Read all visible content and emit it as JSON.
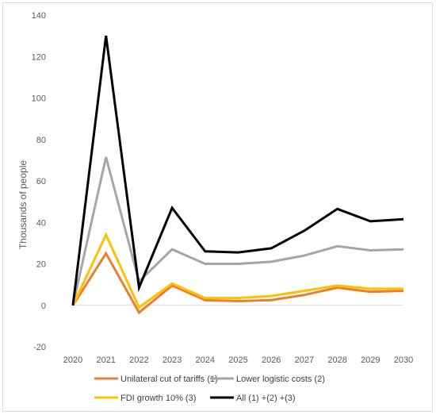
{
  "chart_data": {
    "type": "line",
    "title": "",
    "xlabel": "",
    "ylabel": "Thousands of people",
    "ylim": [
      -20,
      140
    ],
    "yticks": [
      -20,
      0,
      20,
      40,
      60,
      80,
      100,
      120,
      140
    ],
    "categories": [
      "2020",
      "2021",
      "2022",
      "2023",
      "2024",
      "2025",
      "2026",
      "2027",
      "2028",
      "2029",
      "2030"
    ],
    "grid": false,
    "legend_position": "bottom",
    "series": [
      {
        "name": "Unilateral cut of tariffs (1)",
        "color": "#ed7d31",
        "values": [
          0,
          25,
          -3.5,
          9.5,
          2.5,
          2,
          2.5,
          5,
          8.5,
          6.5,
          7
        ]
      },
      {
        "name": "Lower logistic costs (2)",
        "color": "#a5a5a5",
        "values": [
          0,
          71.5,
          11.5,
          27,
          20,
          20,
          21,
          24,
          28.5,
          26.5,
          27
        ]
      },
      {
        "name": "FDI growth 10% (3)",
        "color": "#ffc000",
        "values": [
          0,
          34,
          -1,
          10.5,
          3.5,
          3.5,
          4.5,
          7,
          9.5,
          8,
          8
        ]
      },
      {
        "name": "All (1) +(2) +(3)",
        "color": "#000000",
        "values": [
          0,
          130,
          8.5,
          47,
          26,
          25.5,
          27.5,
          36,
          46.5,
          40.5,
          41.5
        ]
      }
    ]
  }
}
